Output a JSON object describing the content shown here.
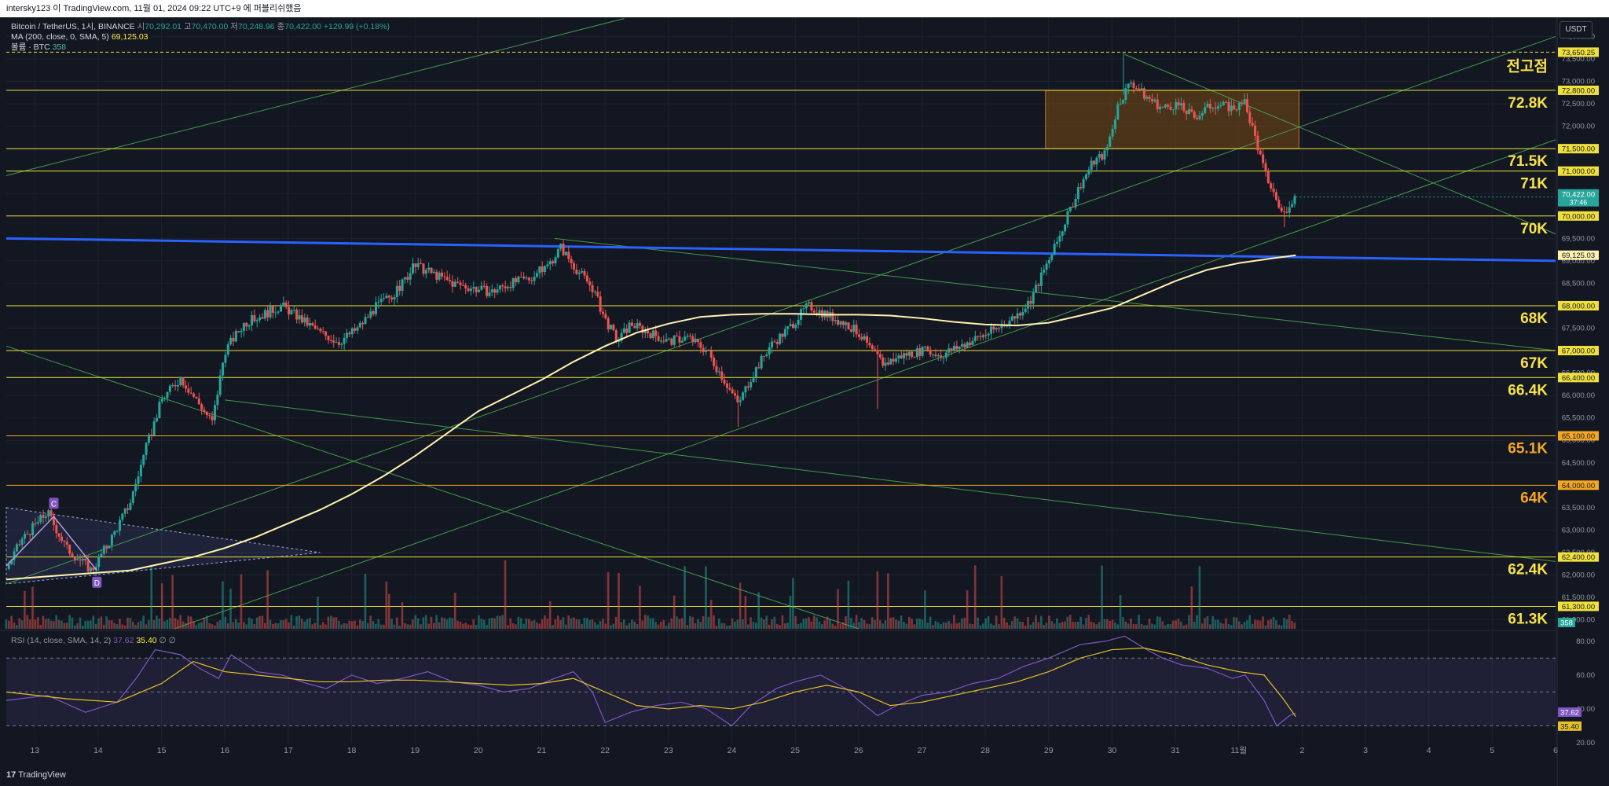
{
  "header": {
    "publisher_line": "intersky123 이 TradingView.com, 11월 01, 2024 09:22 UTC+9 에 퍼블리쉬했음"
  },
  "legend": {
    "symbol": "Bitcoin / TetherUS, 1시, BINANCE",
    "open_label": "시",
    "open": "70,292.01",
    "high_label": "고",
    "high": "70,470.00",
    "low_label": "저",
    "low": "70,248.96",
    "close_label": "종",
    "close": "70,422.00",
    "change": "+129.99 (+0.18%)",
    "ma_label": "MA (200, close, 0, SMA, 5)",
    "ma_value": "69,125.03",
    "volume_label": "볼륨 · BTC",
    "volume_value": "358"
  },
  "rsi_legend": {
    "label": "RSI (14, close, SMA, 14, 2)",
    "rsi_value": "37.62",
    "sma_value": "35.40",
    "extra": "∅ ∅"
  },
  "currency": "USDT",
  "footer_logo": "TradingView",
  "colors": {
    "background": "#131722",
    "up": "#26a69a",
    "down": "#ef5350",
    "level_line": "#f0e03c",
    "level_label_yellow": "#f7e24b",
    "level_label_orange": "#f5a623",
    "trendline_blue": "#2962ff",
    "ma200": "#fff3b0",
    "channel_green": "#4caf50",
    "rsi_line": "#7e57c2",
    "rsi_sma": "#e6c229",
    "supply_zone": "#7a4a12"
  },
  "chart_data": [
    {
      "type": "candlestick",
      "title": "Bitcoin / TetherUS, 1시, BINANCE",
      "x_tick_labels": [
        "13",
        "14",
        "15",
        "16",
        "17",
        "18",
        "19",
        "20",
        "21",
        "22",
        "23",
        "24",
        "25",
        "26",
        "27",
        "28",
        "29",
        "30",
        "31",
        "11월",
        "2",
        "3",
        "4",
        "5",
        "6"
      ],
      "y_tick_labels": [
        "61,000.00",
        "61,500.00",
        "62,000.00",
        "62,500.00",
        "63,000.00",
        "63,500.00",
        "64,000.00",
        "64,500.00",
        "65,000.00",
        "65,500.00",
        "66,000.00",
        "66,500.00",
        "67,000.00",
        "67,500.00",
        "68,000.00",
        "68,500.00",
        "69,000.00",
        "69,500.00",
        "70,000.00",
        "70,500.00",
        "71,000.00",
        "71,500.00",
        "72,000.00",
        "72,500.00",
        "73,000.00",
        "73,500.00",
        "74,000.00"
      ],
      "ylim": [
        60800,
        74200
      ],
      "x_range_days": [
        12.55,
        37.0
      ],
      "price_path": [
        [
          12.5,
          62000
        ],
        [
          12.8,
          62800
        ],
        [
          13.2,
          63400
        ],
        [
          13.5,
          62600
        ],
        [
          13.9,
          62100
        ],
        [
          14.2,
          62800
        ],
        [
          14.5,
          63600
        ],
        [
          14.75,
          64800
        ],
        [
          15.0,
          65900
        ],
        [
          15.3,
          66400
        ],
        [
          15.6,
          65800
        ],
        [
          15.8,
          65400
        ],
        [
          16.0,
          67000
        ],
        [
          16.3,
          67600
        ],
        [
          16.6,
          67800
        ],
        [
          16.9,
          68000
        ],
        [
          17.2,
          67700
        ],
        [
          17.5,
          67400
        ],
        [
          17.8,
          67200
        ],
        [
          18.1,
          67500
        ],
        [
          18.4,
          68000
        ],
        [
          18.7,
          68300
        ],
        [
          19.0,
          68900
        ],
        [
          19.3,
          68700
        ],
        [
          19.6,
          68500
        ],
        [
          19.9,
          68400
        ],
        [
          20.2,
          68300
        ],
        [
          20.5,
          68500
        ],
        [
          20.8,
          68600
        ],
        [
          21.1,
          68900
        ],
        [
          21.3,
          69300
        ],
        [
          21.5,
          68900
        ],
        [
          21.8,
          68400
        ],
        [
          22.0,
          67700
        ],
        [
          22.2,
          67200
        ],
        [
          22.4,
          67600
        ],
        [
          22.7,
          67400
        ],
        [
          23.0,
          67200
        ],
        [
          23.3,
          67300
        ],
        [
          23.6,
          67000
        ],
        [
          23.9,
          66300
        ],
        [
          24.1,
          65800
        ],
        [
          24.3,
          66400
        ],
        [
          24.6,
          67100
        ],
        [
          24.9,
          67500
        ],
        [
          25.2,
          68000
        ],
        [
          25.5,
          67800
        ],
        [
          25.8,
          67600
        ],
        [
          26.0,
          67400
        ],
        [
          26.2,
          67000
        ],
        [
          26.4,
          66700
        ],
        [
          26.7,
          66900
        ],
        [
          27.0,
          67000
        ],
        [
          27.3,
          66900
        ],
        [
          27.6,
          67100
        ],
        [
          27.9,
          67300
        ],
        [
          28.2,
          67500
        ],
        [
          28.5,
          67800
        ],
        [
          28.7,
          68100
        ],
        [
          28.9,
          68700
        ],
        [
          29.1,
          69300
        ],
        [
          29.3,
          70000
        ],
        [
          29.5,
          70700
        ],
        [
          29.7,
          71200
        ],
        [
          29.9,
          71400
        ],
        [
          30.1,
          72500
        ],
        [
          30.3,
          73000
        ],
        [
          30.5,
          72700
        ],
        [
          30.8,
          72400
        ],
        [
          31.0,
          72500
        ],
        [
          31.3,
          72200
        ],
        [
          31.6,
          72500
        ],
        [
          31.9,
          72400
        ],
        [
          32.1,
          72500
        ],
        [
          32.25,
          71800
        ],
        [
          32.4,
          71000
        ],
        [
          32.55,
          70500
        ],
        [
          32.7,
          70000
        ],
        [
          32.8,
          70300
        ],
        [
          32.9,
          70422
        ]
      ],
      "annotated_highs_lows": [
        {
          "x": 30.18,
          "high": 73650
        },
        {
          "x": 26.3,
          "low": 65700
        },
        {
          "x": 24.1,
          "low": 65300
        },
        {
          "x": 32.72,
          "low": 69750
        }
      ],
      "horizontal_levels": [
        {
          "price": 73650.25,
          "label": "73,650.25",
          "right_label": "전고점",
          "style": "dashed",
          "color": "yellow"
        },
        {
          "price": 72800,
          "label": "72,800.00",
          "right_label": "72.8K",
          "color": "yellow"
        },
        {
          "price": 71500,
          "label": "71,500.00",
          "right_label": "71.5K",
          "color": "yellow"
        },
        {
          "price": 71000,
          "label": "71,000.00",
          "right_label": "71K",
          "color": "yellow"
        },
        {
          "price": 70000,
          "label": "70,000.00",
          "right_label": "70K",
          "color": "yellow"
        },
        {
          "price": 68000,
          "label": "68,000.00",
          "right_label": "68K",
          "color": "yellow"
        },
        {
          "price": 67000,
          "label": "67,000.00",
          "right_label": "67K",
          "color": "yellow"
        },
        {
          "price": 66400,
          "label": "66,400.00",
          "right_label": "66.4K",
          "color": "yellow"
        },
        {
          "price": 65100,
          "label": "65,100.00",
          "right_label": "65.1K",
          "color": "orange"
        },
        {
          "price": 64000,
          "label": "64,000.00",
          "right_label": "64K",
          "color": "orange"
        },
        {
          "price": 62400,
          "label": "62,400.00",
          "right_label": "62.4K",
          "color": "yellow"
        },
        {
          "price": 61300,
          "label": "61,300.00",
          "right_label": "61.3K",
          "color": "yellow"
        }
      ],
      "current_price_label": {
        "price": 70422,
        "text": "70,422.00",
        "countdown": "37:46"
      },
      "ma200_label": {
        "price": 69125.03,
        "text": "69,125.03"
      },
      "volume_last_label": "358",
      "ma200_path": [
        [
          12.55,
          61900
        ],
        [
          13.5,
          62000
        ],
        [
          14.5,
          62100
        ],
        [
          15.5,
          62400
        ],
        [
          16.0,
          62600
        ],
        [
          16.5,
          62850
        ],
        [
          17.0,
          63150
        ],
        [
          17.5,
          63450
        ],
        [
          18.0,
          63800
        ],
        [
          18.5,
          64200
        ],
        [
          19.0,
          64650
        ],
        [
          19.5,
          65150
        ],
        [
          20.0,
          65650
        ],
        [
          20.5,
          66000
        ],
        [
          21.0,
          66350
        ],
        [
          21.5,
          66750
        ],
        [
          22.0,
          67100
        ],
        [
          22.5,
          67400
        ],
        [
          23.0,
          67600
        ],
        [
          23.5,
          67750
        ],
        [
          24.0,
          67800
        ],
        [
          24.5,
          67820
        ],
        [
          25.0,
          67820
        ],
        [
          25.5,
          67800
        ],
        [
          26.0,
          67800
        ],
        [
          26.5,
          67780
        ],
        [
          27.0,
          67720
        ],
        [
          27.5,
          67640
        ],
        [
          28.0,
          67580
        ],
        [
          28.5,
          67560
        ],
        [
          29.0,
          67620
        ],
        [
          29.5,
          67780
        ],
        [
          30.0,
          67950
        ],
        [
          30.5,
          68250
        ],
        [
          31.0,
          68550
        ],
        [
          31.5,
          68800
        ],
        [
          32.0,
          68950
        ],
        [
          32.5,
          69050
        ],
        [
          32.9,
          69125
        ]
      ],
      "blue_trendline": [
        [
          12.55,
          69500
        ],
        [
          37.0,
          69000
        ]
      ],
      "green_lines": [
        [
          [
            12.55,
            70900
          ],
          [
            22.3,
            74400
          ]
        ],
        [
          [
            12.55,
            61800
          ],
          [
            37.0,
            74000
          ]
        ],
        [
          [
            15.2,
            60800
          ],
          [
            37.0,
            71700
          ]
        ],
        [
          [
            12.55,
            67100
          ],
          [
            26.0,
            60800
          ]
        ],
        [
          [
            21.2,
            69500
          ],
          [
            37.0,
            67000
          ]
        ],
        [
          [
            16.0,
            65900
          ],
          [
            37.0,
            62300
          ]
        ],
        [
          [
            30.2,
            73600
          ],
          [
            37.0,
            69600
          ]
        ]
      ],
      "supply_zone": {
        "x1": 28.95,
        "x2": 32.95,
        "y1": 71500,
        "y2": 72800
      },
      "pattern_points": [
        {
          "label": "C",
          "x": 13.3,
          "y": 63300
        },
        {
          "label": "D",
          "x": 13.98,
          "y": 62100
        }
      ],
      "triangle_pattern": [
        [
          12.55,
          63500
        ],
        [
          17.5,
          62500
        ],
        [
          12.55,
          61800
        ]
      ]
    },
    {
      "type": "line",
      "title": "RSI (14, close, SMA, 14, 2)",
      "y_tick_labels": [
        "20.00",
        "40.00",
        "60.00",
        "80.00"
      ],
      "ylim": [
        20,
        85
      ],
      "bands": [
        30,
        50,
        70
      ],
      "series": [
        {
          "points": [
            [
              12.55,
              45
            ],
            [
              13.2,
              48
            ],
            [
              13.8,
              38
            ],
            [
              14.3,
              44
            ],
            [
              14.6,
              58
            ],
            [
              14.9,
              75
            ],
            [
              15.3,
              72
            ],
            [
              15.6,
              64
            ],
            [
              15.9,
              58
            ],
            [
              16.1,
              72
            ],
            [
              16.5,
              62
            ],
            [
              16.9,
              60
            ],
            [
              17.3,
              55
            ],
            [
              17.6,
              52
            ],
            [
              18.0,
              60
            ],
            [
              18.4,
              55
            ],
            [
              18.8,
              58
            ],
            [
              19.2,
              62
            ],
            [
              19.6,
              56
            ],
            [
              20.0,
              54
            ],
            [
              20.4,
              50
            ],
            [
              20.8,
              52
            ],
            [
              21.2,
              58
            ],
            [
              21.5,
              62
            ],
            [
              21.8,
              50
            ],
            [
              22.0,
              32
            ],
            [
              22.4,
              38
            ],
            [
              22.8,
              42
            ],
            [
              23.2,
              44
            ],
            [
              23.6,
              40
            ],
            [
              24.0,
              30
            ],
            [
              24.3,
              42
            ],
            [
              24.7,
              52
            ],
            [
              25.0,
              56
            ],
            [
              25.4,
              60
            ],
            [
              25.8,
              52
            ],
            [
              26.0,
              45
            ],
            [
              26.3,
              36
            ],
            [
              26.6,
              42
            ],
            [
              27.0,
              48
            ],
            [
              27.4,
              50
            ],
            [
              27.8,
              55
            ],
            [
              28.2,
              58
            ],
            [
              28.6,
              65
            ],
            [
              29.0,
              70
            ],
            [
              29.5,
              78
            ],
            [
              29.9,
              80
            ],
            [
              30.2,
              83
            ],
            [
              30.5,
              76
            ],
            [
              30.8,
              70
            ],
            [
              31.1,
              66
            ],
            [
              31.5,
              64
            ],
            [
              31.9,
              58
            ],
            [
              32.1,
              60
            ],
            [
              32.4,
              45
            ],
            [
              32.6,
              30
            ],
            [
              32.8,
              36
            ],
            [
              32.9,
              37.62
            ]
          ]
        },
        {
          "points": [
            [
              12.55,
              50
            ],
            [
              13.5,
              46
            ],
            [
              14.3,
              44
            ],
            [
              15.0,
              55
            ],
            [
              15.5,
              68
            ],
            [
              16.0,
              62
            ],
            [
              16.5,
              60
            ],
            [
              17.0,
              58
            ],
            [
              17.5,
              56
            ],
            [
              18.0,
              56
            ],
            [
              18.5,
              57
            ],
            [
              19.0,
              57
            ],
            [
              19.5,
              56
            ],
            [
              20.0,
              55
            ],
            [
              20.5,
              54
            ],
            [
              21.0,
              55
            ],
            [
              21.5,
              58
            ],
            [
              22.0,
              50
            ],
            [
              22.5,
              42
            ],
            [
              23.0,
              40
            ],
            [
              23.5,
              42
            ],
            [
              24.0,
              40
            ],
            [
              24.5,
              44
            ],
            [
              25.0,
              50
            ],
            [
              25.5,
              54
            ],
            [
              26.0,
              50
            ],
            [
              26.5,
              42
            ],
            [
              27.0,
              44
            ],
            [
              27.5,
              48
            ],
            [
              28.0,
              52
            ],
            [
              28.5,
              56
            ],
            [
              29.0,
              62
            ],
            [
              29.5,
              70
            ],
            [
              30.0,
              75
            ],
            [
              30.5,
              76
            ],
            [
              31.0,
              72
            ],
            [
              31.5,
              66
            ],
            [
              32.0,
              62
            ],
            [
              32.4,
              60
            ],
            [
              32.7,
              46
            ],
            [
              32.9,
              35.4
            ]
          ]
        }
      ],
      "last_labels": {
        "rsi": "37.62",
        "sma": "35.40"
      }
    }
  ]
}
